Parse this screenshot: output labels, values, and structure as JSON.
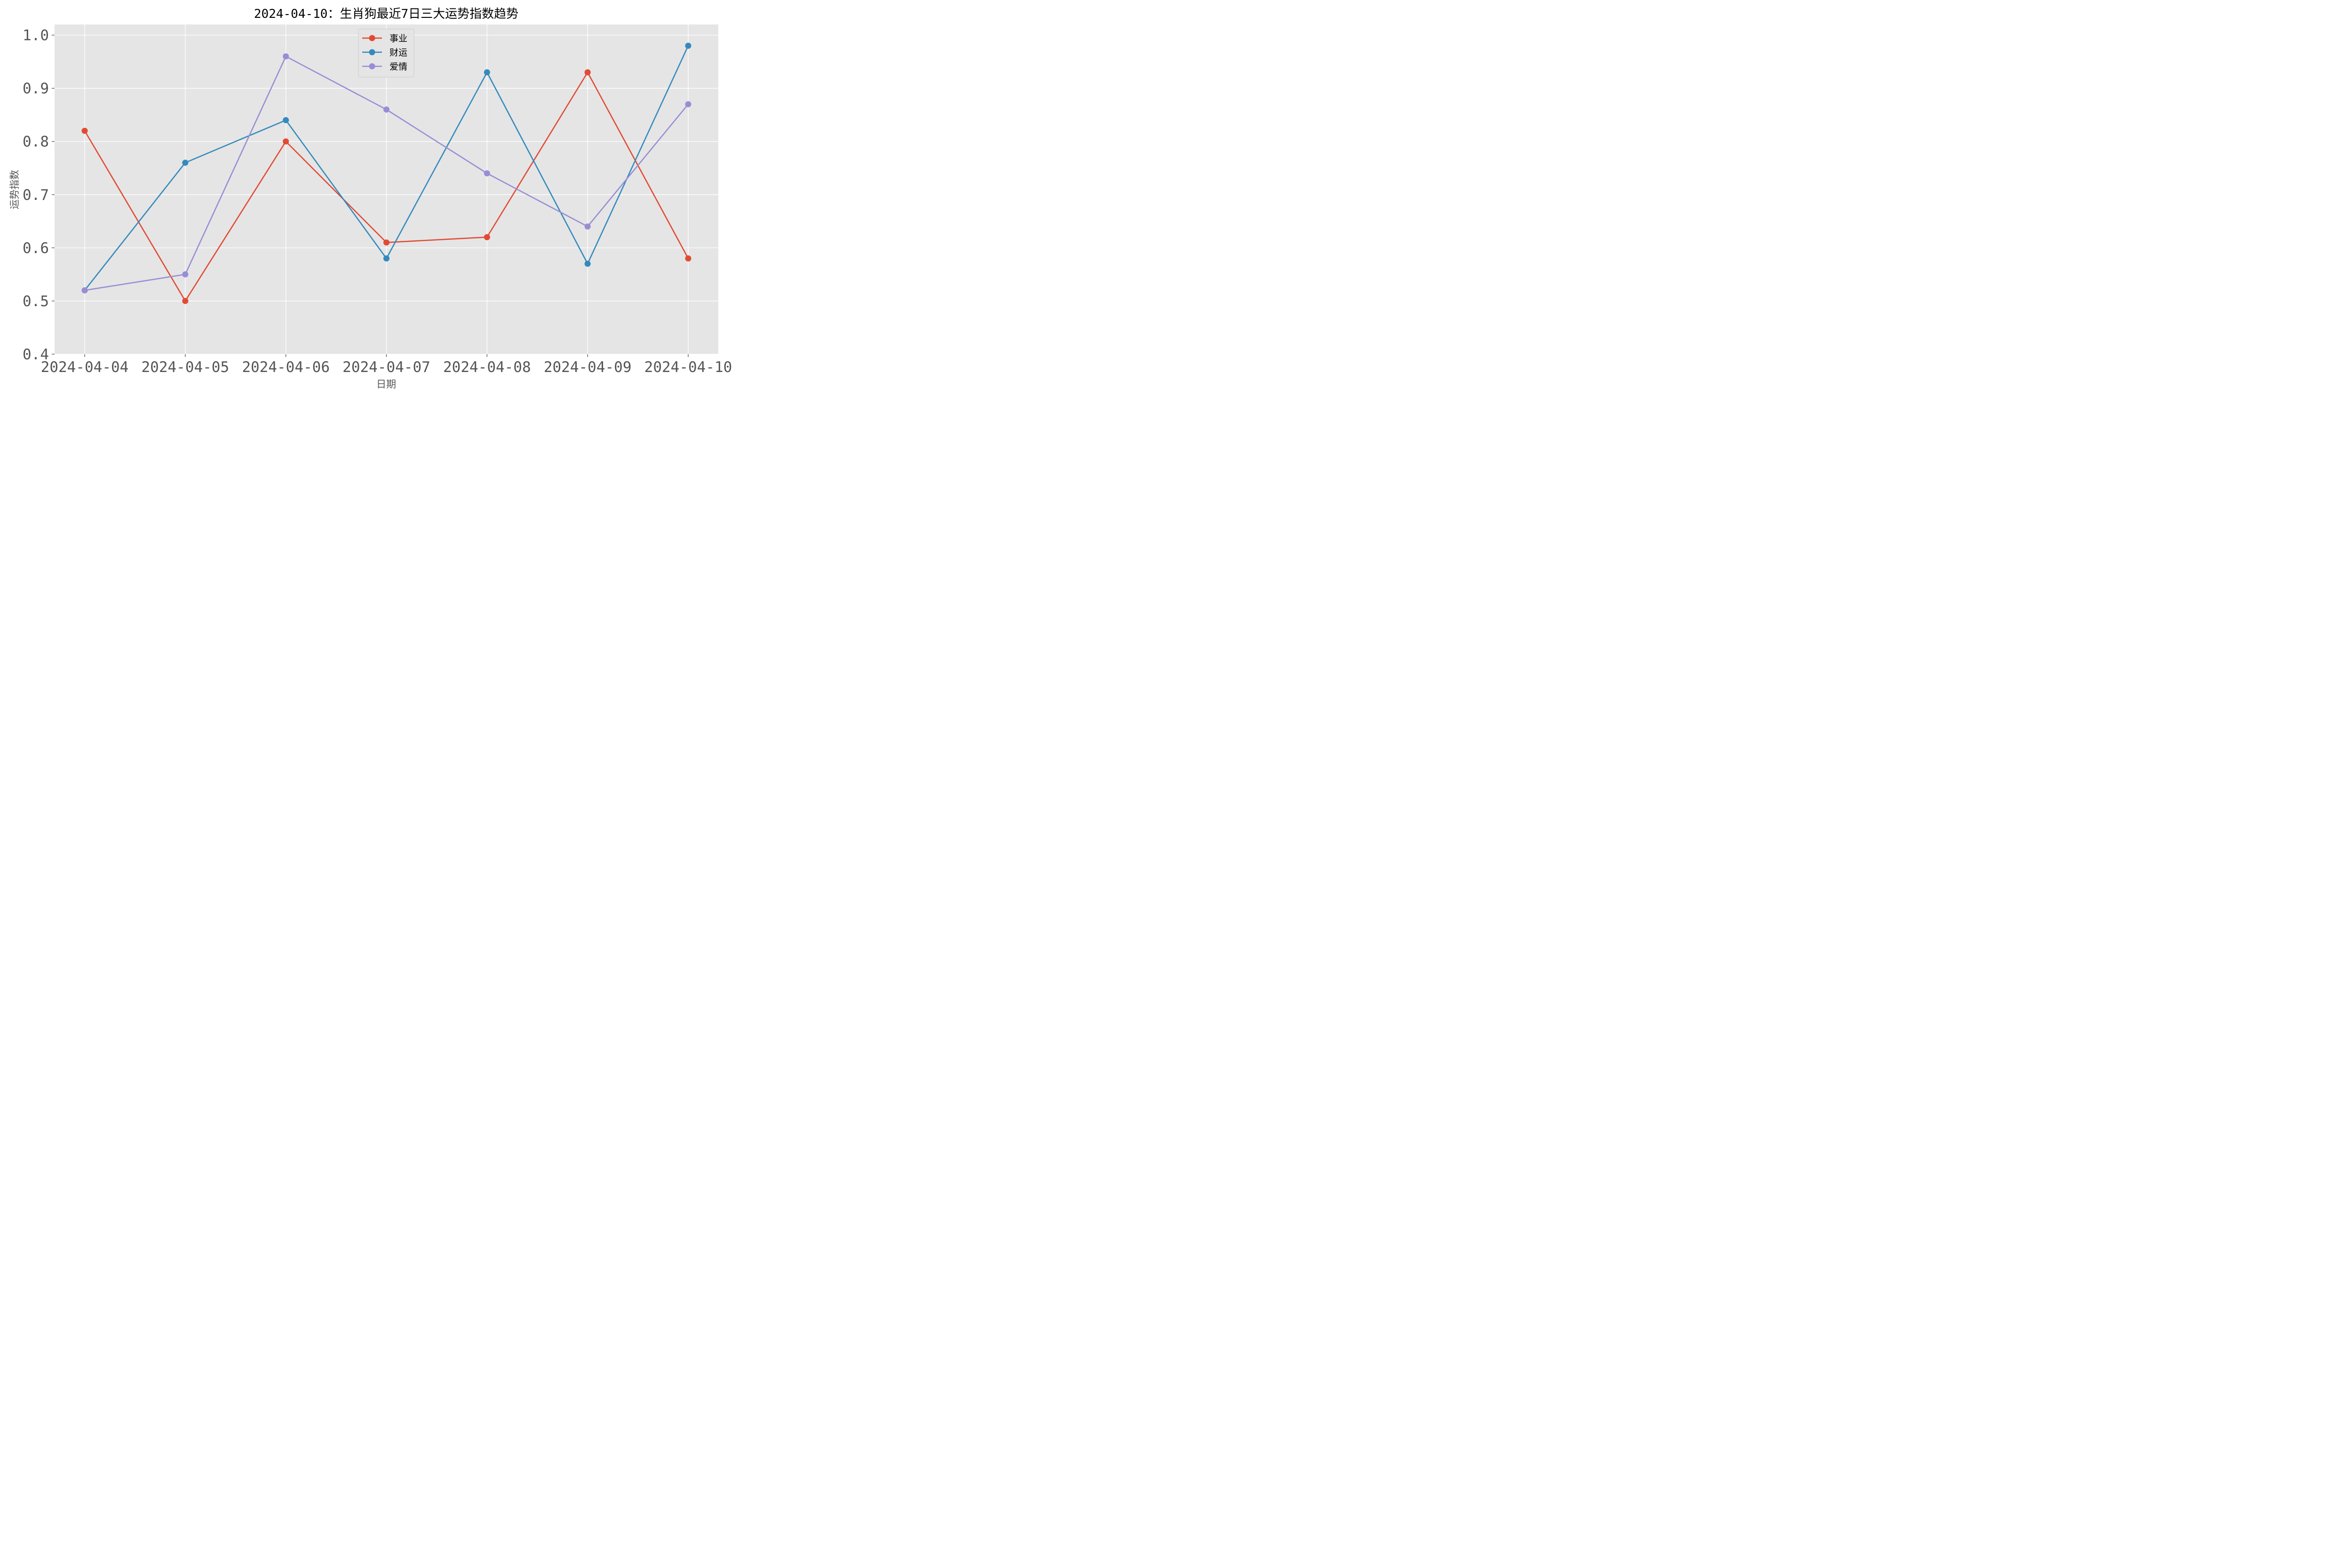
{
  "chart_data": {
    "type": "line",
    "title": "2024-04-10：生肖狗最近7日三大运势指数趋势",
    "xlabel": "日期",
    "ylabel": "运势指数",
    "categories": [
      "2024-04-04",
      "2024-04-05",
      "2024-04-06",
      "2024-04-07",
      "2024-04-08",
      "2024-04-09",
      "2024-04-10"
    ],
    "ylim": [
      0.4,
      1.02
    ],
    "yticks": [
      "0.4",
      "0.5",
      "0.6",
      "0.7",
      "0.8",
      "0.9",
      "1.0"
    ],
    "grid": true,
    "legend_position": "top-center",
    "series": [
      {
        "name": "事业",
        "color": "#E24A33",
        "values": [
          0.82,
          0.5,
          0.8,
          0.61,
          0.62,
          0.93,
          0.58
        ]
      },
      {
        "name": "财运",
        "color": "#348ABD",
        "values": [
          0.52,
          0.76,
          0.84,
          0.58,
          0.93,
          0.57,
          0.98
        ]
      },
      {
        "name": "爱情",
        "color": "#988ED5",
        "values": [
          0.52,
          0.55,
          0.96,
          0.86,
          0.74,
          0.64,
          0.87
        ]
      }
    ]
  }
}
